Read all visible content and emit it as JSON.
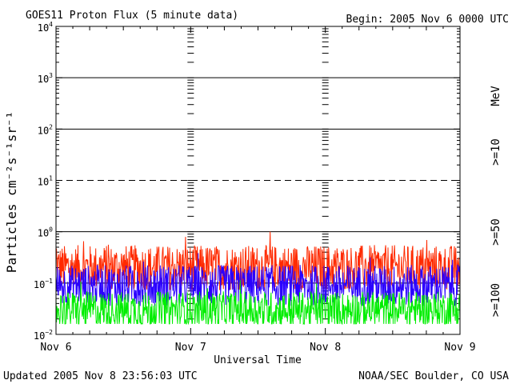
{
  "header": {
    "title": "GOES11 Proton Flux (5 minute data)",
    "begin": "Begin: 2005 Nov 6 0000 UTC"
  },
  "footer": {
    "updated": "Updated 2005 Nov  8 23:56:03 UTC",
    "source": "NOAA/SEC Boulder, CO USA"
  },
  "chart_data": {
    "type": "line",
    "title": "GOES11 Proton Flux (5 minute data)",
    "xlabel": "Universal Time",
    "ylabel": "Particles cm⁻²s⁻¹sr⁻¹",
    "y_scale": "log",
    "ylim": [
      0.01,
      10000
    ],
    "y_ticks": [
      {
        "base": "10",
        "exp": "−2",
        "value": 0.01
      },
      {
        "base": "10",
        "exp": "−1",
        "value": 0.1
      },
      {
        "base": "10",
        "exp": "0",
        "value": 1
      },
      {
        "base": "10",
        "exp": "1",
        "value": 10
      },
      {
        "base": "10",
        "exp": "2",
        "value": 100
      },
      {
        "base": "10",
        "exp": "3",
        "value": 1000
      },
      {
        "base": "10",
        "exp": "4",
        "value": 10000
      }
    ],
    "x_ticks": [
      "Nov 6",
      "Nov 7",
      "Nov 8",
      "Nov 9"
    ],
    "xlim": [
      "2005-11-06 00:00",
      "2005-11-09 00:00"
    ],
    "threshold_lines": [
      {
        "value": 1000,
        "style": "solid"
      },
      {
        "value": 100,
        "style": "solid"
      },
      {
        "value": 10,
        "style": "dashed"
      },
      {
        "value": 1,
        "style": "solid"
      },
      {
        "value": 0.1,
        "style": "solid"
      }
    ],
    "legend_unit": "MeV",
    "legend_color": "#000000",
    "series": [
      {
        "name": ">=10",
        "color": "#ff2a00",
        "baseline": 0.2,
        "spread": 0.55,
        "peak": {
          "x": "2005-11-07 14:10",
          "value": 1.0
        }
      },
      {
        "name": ">=50",
        "color": "#2a00ff",
        "baseline": 0.09,
        "spread": 0.5
      },
      {
        "name": ">=100",
        "color": "#00ee00",
        "baseline": 0.03,
        "spread": 0.45
      }
    ]
  }
}
